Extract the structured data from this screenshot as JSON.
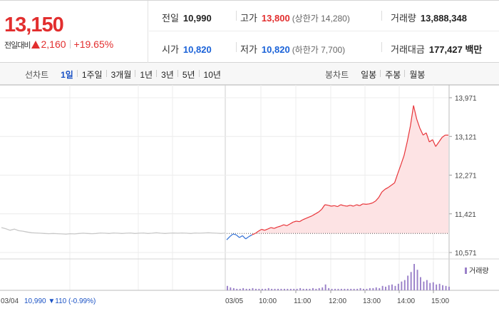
{
  "summary": {
    "price": "13,150",
    "change_label": "전일대비",
    "change_value": "2,160",
    "change_pct": "+19.65%"
  },
  "info": {
    "prev_close": {
      "label": "전일",
      "value": "10,990"
    },
    "high": {
      "label": "고가",
      "value": "13,800",
      "sub": "(상한가 14,280)"
    },
    "volume": {
      "label": "거래량",
      "value": "13,888,348"
    },
    "open": {
      "label": "시가",
      "value": "10,820"
    },
    "low": {
      "label": "저가",
      "value": "10,820",
      "sub": "(하한가 7,700)"
    },
    "amount": {
      "label": "거래대금",
      "value": "177,427",
      "unit": "백만"
    }
  },
  "tabs": {
    "line_label": "선차트",
    "line_periods": [
      "1일",
      "1주일",
      "3개월",
      "1년",
      "3년",
      "5년",
      "10년"
    ],
    "active_period": "1일",
    "candle_label": "봉차트",
    "candle_periods": [
      "일봉",
      "주봉",
      "월봉"
    ]
  },
  "chart_data": {
    "type": "line",
    "y_ticks": [
      "13,971",
      "13,121",
      "12,271",
      "11,421",
      "10,571"
    ],
    "ylim": [
      10571,
      13971
    ],
    "prev_close": 10990,
    "colors": {
      "up": "#e8353a",
      "up_fill": "#fde3e4",
      "down": "#2f6fd6",
      "prev_day": "#c8c8c8",
      "volume": "#9a80c9"
    },
    "prev_day": {
      "date": "03/04",
      "summary": "10,990",
      "change": "110",
      "change_pct": "(-0.99%)",
      "points": [
        11120,
        11095,
        11060,
        11085,
        11050,
        11040,
        11020,
        11005,
        11000,
        10995,
        10990,
        10985,
        10990,
        10985,
        10980,
        10975,
        10985,
        10980,
        10990,
        10995,
        10990,
        10985,
        10990,
        11000,
        10995,
        10990,
        11000,
        10995,
        10990,
        10995,
        11000,
        10990,
        10995,
        11000,
        10990,
        10995,
        11005,
        10995,
        10990,
        10995,
        11000,
        10995,
        11000,
        10995,
        10990,
        11000,
        10995,
        11000,
        11005,
        11000,
        10995,
        10990,
        11000
      ]
    },
    "today": {
      "date": "03/05",
      "x_labels": [
        "10:00",
        "11:00",
        "12:00",
        "13:00",
        "14:00",
        "15:00"
      ],
      "points": [
        10850,
        10920,
        10980,
        10960,
        10900,
        10940,
        10870,
        10920,
        10960,
        10990,
        11040,
        11080,
        11060,
        11090,
        11120,
        11100,
        11130,
        11150,
        11180,
        11160,
        11200,
        11240,
        11260,
        11250,
        11290,
        11320,
        11350,
        11380,
        11420,
        11460,
        11520,
        11620,
        11610,
        11590,
        11600,
        11580,
        11620,
        11600,
        11590,
        11610,
        11590,
        11620,
        11600,
        11640,
        11630,
        11640,
        11660,
        11700,
        11780,
        11900,
        11960,
        12000,
        12050,
        12100,
        12300,
        12500,
        12700,
        13000,
        13350,
        13800,
        13500,
        13300,
        13150,
        13200,
        13000,
        13050,
        12900,
        13000,
        13100,
        13150,
        13150
      ],
      "volume": [
        6,
        4,
        3,
        2,
        2,
        3,
        2,
        2,
        3,
        2,
        2,
        2,
        2,
        3,
        2,
        2,
        2,
        2,
        2,
        2,
        2,
        2,
        2,
        3,
        2,
        2,
        2,
        3,
        2,
        3,
        4,
        8,
        3,
        2,
        2,
        2,
        2,
        2,
        2,
        2,
        2,
        2,
        3,
        2,
        2,
        3,
        3,
        4,
        3,
        6,
        5,
        7,
        8,
        6,
        9,
        12,
        14,
        20,
        25,
        36,
        28,
        18,
        12,
        14,
        10,
        11,
        8,
        9,
        7,
        6,
        5
      ]
    }
  },
  "legend": {
    "volume_label": "거래량"
  }
}
